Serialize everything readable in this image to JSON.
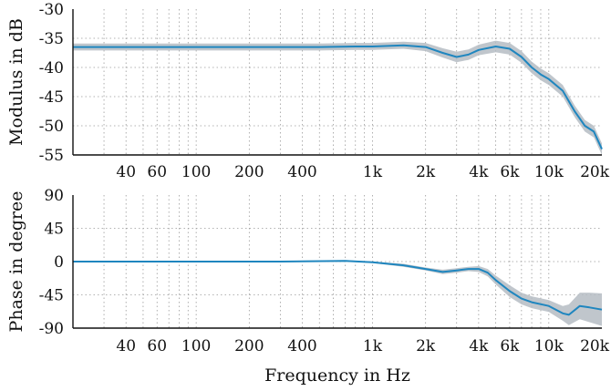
{
  "chart_data": [
    {
      "type": "line",
      "ylabel": "Modulus in dB",
      "xlabel": "",
      "xscale": "log",
      "xlim": [
        20,
        20000
      ],
      "ylim": [
        -55,
        -30
      ],
      "xticks": [
        40,
        60,
        100,
        200,
        400,
        1000,
        2000,
        4000,
        6000,
        10000,
        20000
      ],
      "xtick_labels": [
        "40",
        "60",
        "100",
        "200",
        "400",
        "1k",
        "2k",
        "4k",
        "6k",
        "10k",
        "20k"
      ],
      "yticks": [
        -30,
        -35,
        -40,
        -45,
        -50,
        -55
      ],
      "ytick_labels": [
        "-30",
        "-35",
        "-40",
        "-45",
        "-50",
        "-55"
      ],
      "grid": true,
      "line_color": "#1f86bf",
      "band_color": "#b5bcc3",
      "series": [
        {
          "x": [
            20,
            50,
            100,
            200,
            500,
            800,
            1000,
            1500,
            2000,
            2500,
            3000,
            3500,
            4000,
            5000,
            6000,
            7000,
            8000,
            9000,
            10000,
            12000,
            14000,
            16000,
            18000,
            20000
          ],
          "y": [
            -36.5,
            -36.5,
            -36.5,
            -36.5,
            -36.5,
            -36.4,
            -36.4,
            -36.2,
            -36.5,
            -37.5,
            -38.2,
            -37.8,
            -37.0,
            -36.4,
            -36.8,
            -38.2,
            -40.0,
            -41.2,
            -42.0,
            -44.0,
            -47.5,
            -50.0,
            -51.0,
            -54.0
          ],
          "band": [
            0.6,
            0.6,
            0.6,
            0.6,
            0.6,
            0.6,
            0.6,
            0.6,
            0.7,
            0.8,
            0.9,
            0.9,
            0.9,
            1.0,
            1.0,
            1.0,
            1.0,
            1.0,
            1.0,
            1.0,
            1.0,
            1.0,
            1.0,
            1.0
          ]
        }
      ]
    },
    {
      "type": "line",
      "ylabel": "Phase in degree",
      "xlabel": "Frequency in Hz",
      "xscale": "log",
      "xlim": [
        20,
        20000
      ],
      "ylim": [
        -90,
        90
      ],
      "xticks": [
        40,
        60,
        100,
        200,
        400,
        1000,
        2000,
        4000,
        6000,
        10000,
        20000
      ],
      "xtick_labels": [
        "40",
        "60",
        "100",
        "200",
        "400",
        "1k",
        "2k",
        "4k",
        "6k",
        "10k",
        "20k"
      ],
      "yticks": [
        90,
        45,
        0,
        -45,
        -90
      ],
      "ytick_labels": [
        "90",
        "45",
        "0",
        "-45",
        "-90"
      ],
      "grid": true,
      "line_color": "#1f86bf",
      "band_color": "#b5bcc3",
      "series": [
        {
          "x": [
            20,
            100,
            300,
            700,
            1000,
            1500,
            2000,
            2500,
            3000,
            3500,
            4000,
            4500,
            5000,
            6000,
            7000,
            8000,
            10000,
            12000,
            13000,
            15000,
            17000,
            20000
          ],
          "y": [
            0,
            0,
            0,
            1,
            -1,
            -5,
            -10,
            -14,
            -12,
            -10,
            -10,
            -15,
            -25,
            -40,
            -50,
            -55,
            -60,
            -70,
            -72,
            -60,
            -62,
            -65
          ],
          "band": [
            1,
            1,
            1,
            1,
            1,
            2,
            2,
            3,
            3,
            3,
            4,
            5,
            6,
            8,
            8,
            8,
            8,
            10,
            14,
            18,
            20,
            22
          ]
        }
      ]
    }
  ]
}
